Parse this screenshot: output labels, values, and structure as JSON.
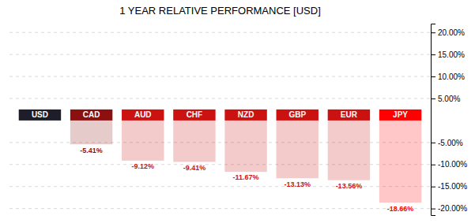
{
  "chart_data": {
    "type": "bar",
    "title": "1 YEAR RELATIVE PERFORMANCE [USD]",
    "categories": [
      "USD",
      "CAD",
      "AUD",
      "CHF",
      "NZD",
      "GBP",
      "EUR",
      "JPY"
    ],
    "values": [
      0,
      -5.41,
      -9.12,
      -9.41,
      -11.67,
      -13.13,
      -13.56,
      -18.66
    ],
    "value_labels": [
      null,
      "-5.41%",
      "-9.12%",
      "-9.41%",
      "-11.67%",
      "-13.13%",
      "-13.56%",
      "-18.66%"
    ],
    "data_labels": true,
    "colors": [
      "#1e1e2a",
      "#8b1010",
      "#cc1111",
      "#cc1111",
      "#cc1111",
      "#cc1111",
      "#cc1111",
      "#ff0000"
    ],
    "ylim": [
      -21.5,
      22
    ],
    "yticks": [
      {
        "value": 20,
        "label": "20.00%"
      },
      {
        "value": 15,
        "label": "15.00%"
      },
      {
        "value": 10,
        "label": "10.00%"
      },
      {
        "value": 5,
        "label": "5.00%"
      },
      {
        "value": -5,
        "label": "-5.00%"
      },
      {
        "value": -10,
        "label": "-10.00%"
      },
      {
        "value": -15,
        "label": "-15.00%"
      },
      {
        "value": -20,
        "label": "-20.00%"
      }
    ],
    "grid": true
  }
}
